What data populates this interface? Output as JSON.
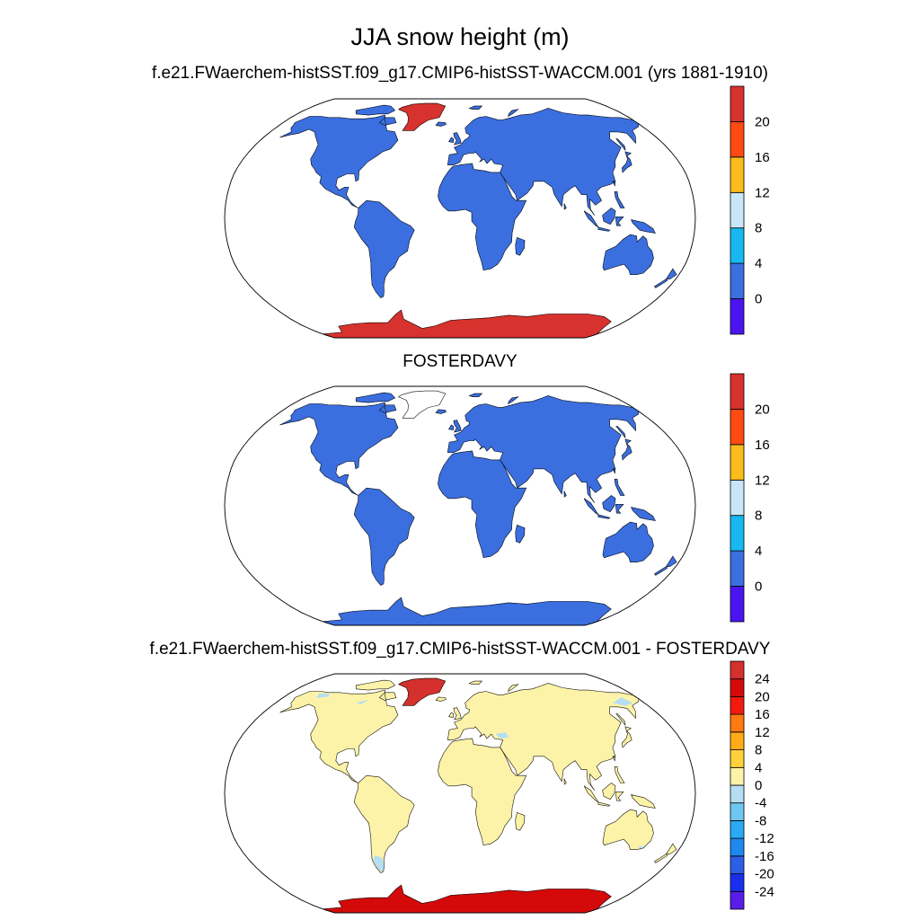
{
  "figure": {
    "title": "JJA snow height (m)"
  },
  "colors": {
    "land_ocean_bg": "#ffffff",
    "coast": "#111111"
  },
  "chart_data": [
    {
      "type": "heatmap",
      "projection": "Robinson",
      "title": "f.e21.FWaerchem-histSST.f09_g17.CMIP6-histSST-WACCM.001 (yrs 1881-1910)",
      "colorbar": {
        "tick_labels": [
          "0",
          "4",
          "8",
          "12",
          "16",
          "20"
        ],
        "bins": [
          {
            "range": "< 0",
            "color": "#4a14f0"
          },
          {
            "range": "0-4",
            "color": "#3b6fe0"
          },
          {
            "range": "4-8",
            "color": "#17b8f2"
          },
          {
            "range": "8-12",
            "color": "#c9e6f8"
          },
          {
            "range": "12-16",
            "color": "#fbbd1c"
          },
          {
            "range": "16-20",
            "color": "#ff4a12"
          },
          {
            "range": "> 20",
            "color": "#d8322e"
          }
        ]
      },
      "regions": {
        "land": "0-4",
        "greenland": "> 20",
        "antarctica": "> 20"
      }
    },
    {
      "type": "heatmap",
      "projection": "Robinson",
      "title": "FOSTERDAVY",
      "colorbar": {
        "tick_labels": [
          "0",
          "4",
          "8",
          "12",
          "16",
          "20"
        ],
        "bins": [
          {
            "range": "< 0",
            "color": "#4a14f0"
          },
          {
            "range": "0-4",
            "color": "#3b6fe0"
          },
          {
            "range": "4-8",
            "color": "#17b8f2"
          },
          {
            "range": "8-12",
            "color": "#c9e6f8"
          },
          {
            "range": "12-16",
            "color": "#fbbd1c"
          },
          {
            "range": "16-20",
            "color": "#ff4a12"
          },
          {
            "range": "> 20",
            "color": "#d8322e"
          }
        ]
      },
      "regions": {
        "land": "0-4",
        "antarctica": "0-4"
      }
    },
    {
      "type": "heatmap",
      "projection": "Robinson",
      "title": "f.e21.FWaerchem-histSST.f09_g17.CMIP6-histSST-WACCM.001 - FOSTERDAVY",
      "colorbar": {
        "tick_labels": [
          "-24",
          "-20",
          "-16",
          "-12",
          "-8",
          "-4",
          "0",
          "4",
          "8",
          "12",
          "16",
          "20",
          "24"
        ],
        "bins": [
          {
            "range": "< -24",
            "color": "#5a1ce8"
          },
          {
            "range": "-24--20",
            "color": "#1a2ef0"
          },
          {
            "range": "-20--16",
            "color": "#2c5fe6"
          },
          {
            "range": "-16--12",
            "color": "#1e88f0"
          },
          {
            "range": "-12--8",
            "color": "#2aaaf2"
          },
          {
            "range": "-8--4",
            "color": "#6ec7f2"
          },
          {
            "range": "-4-0",
            "color": "#b5def3"
          },
          {
            "range": "0-4",
            "color": "#fdf3a8"
          },
          {
            "range": "4-8",
            "color": "#ffd23c"
          },
          {
            "range": "8-12",
            "color": "#ffac18"
          },
          {
            "range": "12-16",
            "color": "#ff7a10"
          },
          {
            "range": "16-20",
            "color": "#f21a0e"
          },
          {
            "range": "20-24",
            "color": "#d40a0a"
          },
          {
            "range": "> 24",
            "color": "#d4302c"
          }
        ]
      },
      "regions": {
        "land": "0-4",
        "greenland": "> 24",
        "antarctica": "20-24",
        "patagonia": "-4-0",
        "arctic_patches": "-4-0"
      }
    }
  ]
}
